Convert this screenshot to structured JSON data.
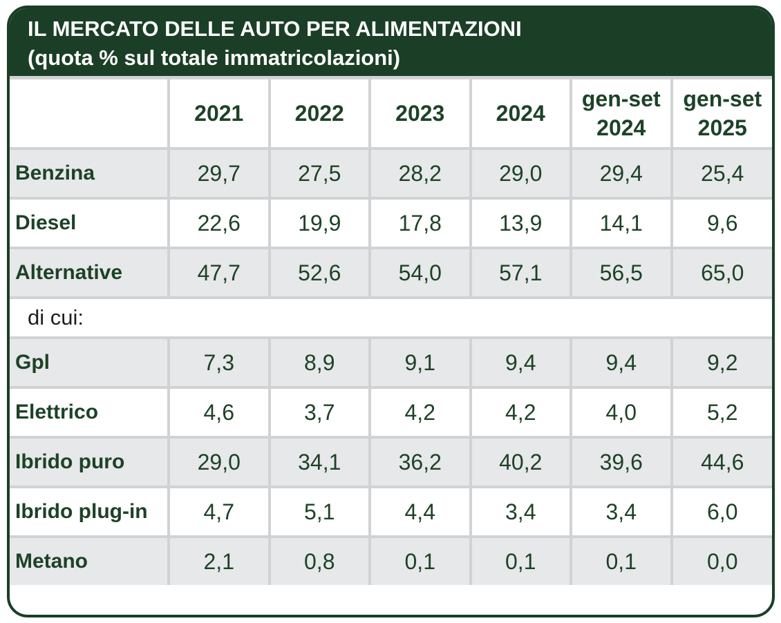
{
  "banner": {
    "title": "IL MERCATO DELLE AUTO PER ALIMENTAZIONI",
    "subtitle": "(quota % sul totale immatricolazioni)"
  },
  "colors": {
    "dark_green": "#1b3e27",
    "text_green": "#1d4227",
    "shaded_row": "#e7e8e9",
    "separator": "#d1d2d3",
    "section_text": "#1f1f1f"
  },
  "table": {
    "columns": [
      "",
      "2021",
      "2022",
      "2023",
      "2024",
      "gen-set 2024",
      "gen-set 2025"
    ],
    "rows": [
      {
        "label": "Benzina",
        "shaded": true,
        "values": [
          "29,7",
          "27,5",
          "28,2",
          "29,0",
          "29,4",
          "25,4"
        ]
      },
      {
        "label": "Diesel",
        "shaded": false,
        "values": [
          "22,6",
          "19,9",
          "17,8",
          "13,9",
          "14,1",
          "9,6"
        ]
      },
      {
        "label": "Alternative",
        "shaded": true,
        "values": [
          "47,7",
          "52,6",
          "54,0",
          "57,1",
          "56,5",
          "65,0"
        ]
      },
      {
        "label": "di cui:",
        "section": true
      },
      {
        "label": "Gpl",
        "shaded": true,
        "values": [
          "7,3",
          "8,9",
          "9,1",
          "9,4",
          "9,4",
          "9,2"
        ]
      },
      {
        "label": "Elettrico",
        "shaded": false,
        "values": [
          "4,6",
          "3,7",
          "4,2",
          "4,2",
          "4,0",
          "5,2"
        ]
      },
      {
        "label": "Ibrido puro",
        "shaded": true,
        "values": [
          "29,0",
          "34,1",
          "36,2",
          "40,2",
          "39,6",
          "44,6"
        ]
      },
      {
        "label": "Ibrido plug-in",
        "shaded": false,
        "values": [
          "4,7",
          "5,1",
          "4,4",
          "3,4",
          "3,4",
          "6,0"
        ]
      },
      {
        "label": "Metano",
        "shaded": true,
        "values": [
          "2,1",
          "0,8",
          "0,1",
          "0,1",
          "0,1",
          "0,0"
        ]
      }
    ]
  },
  "chart_data": {
    "type": "table",
    "title": "IL MERCATO DELLE AUTO PER ALIMENTAZIONI",
    "subtitle": "(quota % sul totale immatricolazioni)",
    "unit": "percent share of total registrations",
    "columns": [
      "",
      "2021",
      "2022",
      "2023",
      "2024",
      "gen-set 2024",
      "gen-set 2025"
    ],
    "rows": [
      [
        "Benzina",
        29.7,
        27.5,
        28.2,
        29.0,
        29.4,
        25.4
      ],
      [
        "Diesel",
        22.6,
        19.9,
        17.8,
        13.9,
        14.1,
        9.6
      ],
      [
        "Alternative",
        47.7,
        52.6,
        54.0,
        57.1,
        56.5,
        65.0
      ],
      [
        "di cui:",
        null,
        null,
        null,
        null,
        null,
        null
      ],
      [
        "Gpl",
        7.3,
        8.9,
        9.1,
        9.4,
        9.4,
        9.2
      ],
      [
        "Elettrico",
        4.6,
        3.7,
        4.2,
        4.2,
        4.0,
        5.2
      ],
      [
        "Ibrido puro",
        29.0,
        34.1,
        36.2,
        40.2,
        39.6,
        44.6
      ],
      [
        "Ibrido plug-in",
        4.7,
        5.1,
        4.4,
        3.4,
        3.4,
        6.0
      ],
      [
        "Metano",
        2.1,
        0.8,
        0.1,
        0.1,
        0.1,
        0.0
      ]
    ]
  }
}
